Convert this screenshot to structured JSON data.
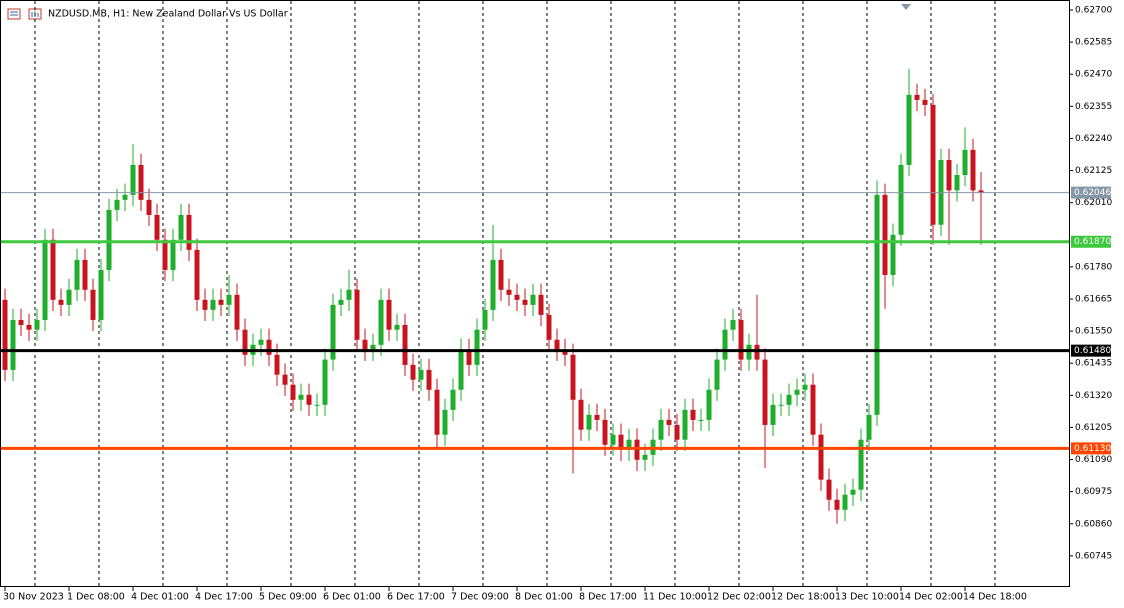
{
  "chart_data": {
    "type": "candlestick",
    "title": "NZDUSD.MB, H1:  New Zealand Dollar Vs US Dollar",
    "up_color": "#1fae2b",
    "down_color": "#c8141e",
    "xgrid": true,
    "categories": [
      "30 Nov 2023",
      null,
      null,
      null,
      null,
      null,
      null,
      null,
      "1 Dec 08:00",
      null,
      null,
      null,
      null,
      null,
      null,
      null,
      "4 Dec 01:00",
      null,
      null,
      null,
      null,
      null,
      null,
      null,
      "4 Dec 17:00",
      null,
      null,
      null,
      null,
      null,
      null,
      null,
      "5 Dec 09:00",
      null,
      null,
      null,
      null,
      null,
      null,
      null,
      "6 Dec 01:00",
      null,
      null,
      null,
      null,
      null,
      null,
      null,
      "6 Dec 17:00",
      null,
      null,
      null,
      null,
      null,
      null,
      null,
      "7 Dec 09:00",
      null,
      null,
      null,
      null,
      null,
      null,
      null,
      "8 Dec 01:00",
      null,
      null,
      null,
      null,
      null,
      null,
      null,
      "8 Dec 17:00",
      null,
      null,
      null,
      null,
      null,
      null,
      null,
      "11 Dec 10:00",
      null,
      null,
      null,
      null,
      null,
      null,
      null,
      "12 Dec 02:00",
      null,
      null,
      null,
      null,
      null,
      null,
      null,
      "12 Dec 18:00",
      null,
      null,
      null,
      null,
      null,
      null,
      null,
      "13 Dec 10:00",
      null,
      null,
      null,
      null,
      null,
      null,
      null,
      "14 Dec 02:00",
      null,
      null,
      null,
      null,
      null,
      null,
      null,
      "14 Dec 18:00",
      null,
      null
    ],
    "open": [
      0.61662,
      0.61411,
      0.6159,
      0.61572,
      0.61555,
      0.6159,
      0.61877,
      0.61662,
      0.61644,
      0.61698,
      0.61805,
      0.61698,
      0.6159,
      0.61769,
      0.61984,
      0.6202,
      0.62038,
      0.62145,
      0.6202,
      0.61966,
      0.61877,
      0.61769,
      0.61877,
      0.61966,
      0.61841,
      0.61662,
      0.61626,
      0.61662,
      0.61644,
      0.6168,
      0.61555,
      0.61465,
      0.61501,
      0.61519,
      0.61465,
      0.61394,
      0.61358,
      0.61304,
      0.61322,
      0.61286,
      0.61286,
      0.61448,
      0.61644,
      0.61662,
      0.61698,
      0.61519,
      0.61483,
      0.61501,
      0.61662,
      0.61555,
      0.61572,
      0.61429,
      0.61376,
      0.61411,
      0.6134,
      0.61179,
      0.61268,
      0.6134,
      0.61483,
      0.61429,
      0.61555,
      0.61626,
      0.61805,
      0.61698,
      0.6168,
      0.61662,
      0.61644,
      0.6168,
      0.61608,
      0.61519,
      0.61483,
      0.61465,
      0.61304,
      0.61197,
      0.6125,
      0.61232,
      0.61143,
      0.61179,
      0.61125,
      0.61161,
      0.61089,
      0.61107,
      0.61161,
      0.61232,
      0.61214,
      0.61161,
      0.61268,
      0.61232,
      0.61232,
      0.6134,
      0.61448,
      0.61555,
      0.6159,
      0.61448,
      0.61501,
      0.61448,
      0.61214,
      0.61286,
      0.61286,
      0.61322,
      0.6134,
      0.61358,
      0.61179,
      0.61018,
      0.60946,
      0.6091,
      0.60964,
      0.60982,
      0.61161,
      0.6125,
      0.62038,
      0.61751,
      0.61895,
      0.62145,
      0.62396,
      0.62378,
      0.6236,
      0.61931,
      0.62163,
      0.62054,
      0.62109,
      0.62199,
      0.62054
    ],
    "high": [
      0.61702,
      0.6163,
      0.6163,
      0.61612,
      0.6163,
      0.61917,
      0.61917,
      0.61702,
      0.61738,
      0.61845,
      0.61845,
      0.61738,
      0.61809,
      0.62024,
      0.6206,
      0.62078,
      0.6222,
      0.62185,
      0.6206,
      0.62006,
      0.61917,
      0.61917,
      0.62006,
      0.62006,
      0.61881,
      0.61702,
      0.61702,
      0.61702,
      0.6175,
      0.6172,
      0.61595,
      0.61541,
      0.61559,
      0.61559,
      0.61505,
      0.61434,
      0.61398,
      0.61362,
      0.61362,
      0.61326,
      0.61488,
      0.61684,
      0.61702,
      0.6177,
      0.61738,
      0.61559,
      0.61541,
      0.61702,
      0.61702,
      0.61612,
      0.61612,
      0.61469,
      0.61451,
      0.61451,
      0.6138,
      0.61308,
      0.6138,
      0.61523,
      0.61523,
      0.61595,
      0.61666,
      0.6193,
      0.61845,
      0.61738,
      0.6172,
      0.61702,
      0.6172,
      0.6172,
      0.61648,
      0.61559,
      0.61523,
      0.61505,
      0.61344,
      0.6129,
      0.6129,
      0.61272,
      0.61219,
      0.61219,
      0.61201,
      0.61201,
      0.61147,
      0.61201,
      0.61272,
      0.61272,
      0.61254,
      0.61308,
      0.61308,
      0.61272,
      0.6138,
      0.61488,
      0.61595,
      0.6163,
      0.6163,
      0.61541,
      0.6168,
      0.61488,
      0.61326,
      0.61326,
      0.61362,
      0.6138,
      0.61398,
      0.61398,
      0.61219,
      0.61058,
      0.60986,
      0.61004,
      0.61022,
      0.61201,
      0.6129,
      0.6209,
      0.62078,
      0.61935,
      0.62185,
      0.6249,
      0.62436,
      0.62418,
      0.624,
      0.62203,
      0.62203,
      0.62149,
      0.6228,
      0.62239,
      0.6212
    ],
    "low": [
      0.61371,
      0.61371,
      0.61532,
      0.61515,
      0.61515,
      0.6155,
      0.61622,
      0.61604,
      0.61604,
      0.61658,
      0.61658,
      0.6155,
      0.6155,
      0.61729,
      0.61944,
      0.6198,
      0.61998,
      0.6198,
      0.61926,
      0.61837,
      0.61729,
      0.61729,
      0.61837,
      0.61801,
      0.61622,
      0.61586,
      0.61586,
      0.61604,
      0.61604,
      0.61515,
      0.61425,
      0.61425,
      0.61461,
      0.61425,
      0.61354,
      0.61318,
      0.61264,
      0.61264,
      0.61246,
      0.61246,
      0.61246,
      0.61408,
      0.61604,
      0.61622,
      0.61479,
      0.61443,
      0.61443,
      0.61461,
      0.61515,
      0.61515,
      0.61389,
      0.61336,
      0.61336,
      0.613,
      0.6113,
      0.61139,
      0.61228,
      0.613,
      0.61389,
      0.61389,
      0.61515,
      0.61586,
      0.61658,
      0.6164,
      0.61622,
      0.61604,
      0.61604,
      0.61568,
      0.61479,
      0.61443,
      0.61425,
      0.6104,
      0.61157,
      0.61157,
      0.61192,
      0.61103,
      0.61103,
      0.61085,
      0.61085,
      0.61049,
      0.61049,
      0.61067,
      0.61121,
      0.61174,
      0.61121,
      0.61121,
      0.61192,
      0.61192,
      0.61192,
      0.613,
      0.61408,
      0.61515,
      0.61408,
      0.61408,
      0.61408,
      0.6106,
      0.61174,
      0.61246,
      0.61246,
      0.61282,
      0.613,
      0.61139,
      0.60978,
      0.60906,
      0.6086,
      0.6087,
      0.60924,
      0.60942,
      0.61121,
      0.6121,
      0.6163,
      0.61711,
      0.61855,
      0.62105,
      0.62338,
      0.6232,
      0.6186,
      0.61891,
      0.6186,
      0.62014,
      0.62069,
      0.62014,
      0.6186
    ],
    "close": [
      0.61411,
      0.6159,
      0.61572,
      0.61555,
      0.6159,
      0.61877,
      0.61662,
      0.61644,
      0.61698,
      0.61805,
      0.61698,
      0.6159,
      0.61769,
      0.61984,
      0.6202,
      0.62038,
      0.62145,
      0.6202,
      0.61966,
      0.61877,
      0.61769,
      0.61877,
      0.61966,
      0.61841,
      0.61662,
      0.61626,
      0.61662,
      0.61644,
      0.6168,
      0.61555,
      0.61465,
      0.61501,
      0.61519,
      0.61465,
      0.61394,
      0.61358,
      0.61304,
      0.61322,
      0.61286,
      0.61286,
      0.61448,
      0.61644,
      0.61662,
      0.61698,
      0.61519,
      0.61483,
      0.61501,
      0.61662,
      0.61555,
      0.61572,
      0.61429,
      0.61376,
      0.61411,
      0.6134,
      0.61179,
      0.61268,
      0.6134,
      0.61483,
      0.61429,
      0.61555,
      0.61626,
      0.61805,
      0.61698,
      0.6168,
      0.61662,
      0.61644,
      0.6168,
      0.61608,
      0.61519,
      0.61483,
      0.61465,
      0.61304,
      0.61197,
      0.6125,
      0.61232,
      0.61143,
      0.61179,
      0.61125,
      0.61161,
      0.61089,
      0.61107,
      0.61161,
      0.61232,
      0.61214,
      0.61161,
      0.61268,
      0.61232,
      0.61232,
      0.6134,
      0.61448,
      0.61555,
      0.6159,
      0.61448,
      0.61501,
      0.61448,
      0.61214,
      0.61286,
      0.61286,
      0.61322,
      0.6134,
      0.61358,
      0.61179,
      0.61018,
      0.60946,
      0.6091,
      0.60964,
      0.60982,
      0.61161,
      0.6125,
      0.62038,
      0.61751,
      0.61895,
      0.62145,
      0.62396,
      0.62378,
      0.6236,
      0.61931,
      0.62163,
      0.62054,
      0.62109,
      0.62199,
      0.62054,
      0.62046
    ],
    "ylim": [
      0.6063,
      0.62725
    ],
    "yticks": [
      {
        "value": 0.627,
        "label": "0.62700"
      },
      {
        "value": 0.62585,
        "label": "0.62585"
      },
      {
        "value": 0.6247,
        "label": "0.62470"
      },
      {
        "value": 0.62355,
        "label": "0.62355"
      },
      {
        "value": 0.6224,
        "label": "0.62240"
      },
      {
        "value": 0.62125,
        "label": "0.62125"
      },
      {
        "value": 0.6201,
        "label": "0.62010"
      },
      {
        "value": 0.6178,
        "label": "0.61780"
      },
      {
        "value": 0.61665,
        "label": "0.61665"
      },
      {
        "value": 0.6155,
        "label": "0.61550"
      },
      {
        "value": 0.61435,
        "label": "0.61435"
      },
      {
        "value": 0.6132,
        "label": "0.61320"
      },
      {
        "value": 0.61205,
        "label": "0.61205"
      },
      {
        "value": 0.6109,
        "label": "0.61090"
      },
      {
        "value": 0.60975,
        "label": "0.60975"
      },
      {
        "value": 0.6086,
        "label": "0.60860"
      },
      {
        "value": 0.60745,
        "label": "0.60745"
      }
    ],
    "hlines": [
      {
        "value": 0.62046,
        "label": "0.62046",
        "color": "#8796a6",
        "width": 1
      },
      {
        "value": 0.6187,
        "label": "0.61870",
        "color": "#3dc83d",
        "width": 3
      },
      {
        "value": 0.6148,
        "label": "0.61480",
        "color": "#000000",
        "width": 3
      },
      {
        "value": 0.6113,
        "label": "0.61130",
        "color": "#ff4500",
        "width": 3
      }
    ]
  }
}
